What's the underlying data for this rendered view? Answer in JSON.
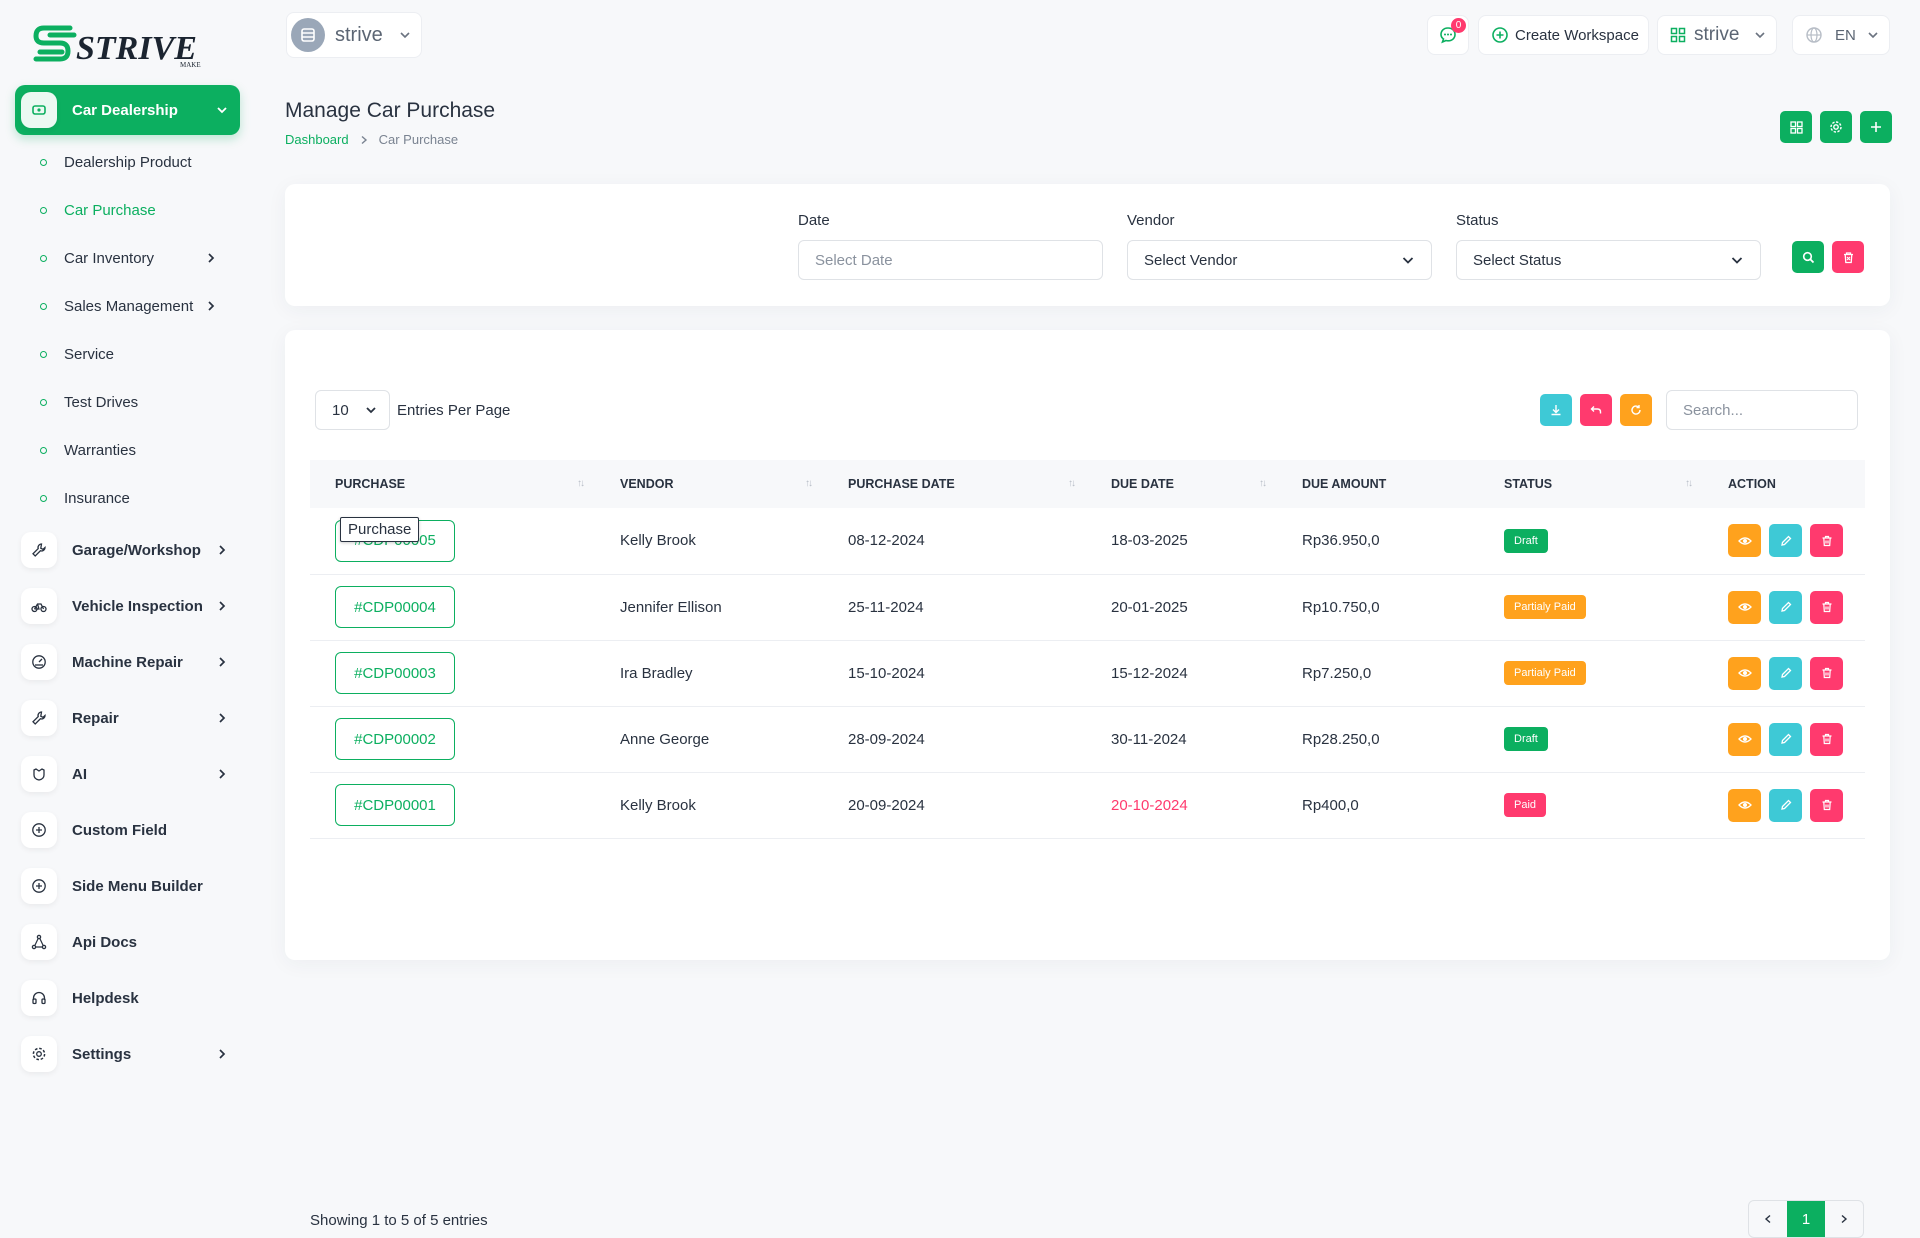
{
  "brand": {
    "logo_text": "STRIVE",
    "logo_sub": "MAKE"
  },
  "sidebar": {
    "top": {
      "label": "Car Dealership"
    },
    "sub_items": [
      {
        "label": "Dealership Product",
        "has_arrow": false
      },
      {
        "label": "Car Purchase",
        "has_arrow": false,
        "active": true
      },
      {
        "label": "Car Inventory",
        "has_arrow": true
      },
      {
        "label": "Sales Management",
        "has_arrow": true
      },
      {
        "label": "Service",
        "has_arrow": false
      },
      {
        "label": "Test Drives",
        "has_arrow": false
      },
      {
        "label": "Warranties",
        "has_arrow": false
      },
      {
        "label": "Insurance",
        "has_arrow": false
      }
    ],
    "main_items": [
      {
        "label": "Garage/Workshop",
        "icon": "wrench-icon",
        "has_arrow": true
      },
      {
        "label": "Vehicle Inspection",
        "icon": "bike-icon",
        "has_arrow": true
      },
      {
        "label": "Machine Repair",
        "icon": "gauge-icon",
        "has_arrow": true
      },
      {
        "label": "Repair",
        "icon": "wrench-icon",
        "has_arrow": true
      },
      {
        "label": "AI",
        "icon": "brain-icon",
        "has_arrow": true
      },
      {
        "label": "Custom Field",
        "icon": "plus-circle-icon",
        "has_arrow": false
      },
      {
        "label": "Side Menu Builder",
        "icon": "plus-circle-icon",
        "has_arrow": false
      },
      {
        "label": "Api Docs",
        "icon": "network-icon",
        "has_arrow": false
      },
      {
        "label": "Helpdesk",
        "icon": "headset-icon",
        "has_arrow": false
      },
      {
        "label": "Settings",
        "icon": "gear-icon",
        "has_arrow": true
      }
    ]
  },
  "header": {
    "workspace_name": "strive",
    "notification_count": "0",
    "create_workspace": "Create Workspace",
    "workspace_menu": "strive",
    "language": "EN"
  },
  "page": {
    "title": "Manage Car Purchase",
    "breadcrumb": [
      "Dashboard",
      "Car Purchase"
    ]
  },
  "filters": {
    "date": {
      "label": "Date",
      "placeholder": "Select Date"
    },
    "vendor": {
      "label": "Vendor",
      "value": "Select Vendor"
    },
    "status": {
      "label": "Status",
      "value": "Select Status"
    }
  },
  "table": {
    "per_page": "10",
    "per_page_label": "Entries Per Page",
    "search_placeholder": "Search...",
    "columns": [
      "PURCHASE",
      "VENDOR",
      "PURCHASE DATE",
      "DUE DATE",
      "DUE AMOUNT",
      "STATUS",
      "ACTION"
    ],
    "tooltip": "Purchase",
    "rows": [
      {
        "id": "#CDP00005",
        "vendor": "Kelly Brook",
        "purchase_date": "08-12-2024",
        "due_date": "18-03-2025",
        "due_amount": "Rp36.950,0",
        "status": "Draft",
        "status_color": "#0caf60",
        "overdue": false
      },
      {
        "id": "#CDP00004",
        "vendor": "Jennifer Ellison",
        "purchase_date": "25-11-2024",
        "due_date": "20-01-2025",
        "due_amount": "Rp10.750,0",
        "status": "Partialy Paid",
        "status_color": "#ffa21d",
        "overdue": false
      },
      {
        "id": "#CDP00003",
        "vendor": "Ira Bradley",
        "purchase_date": "15-10-2024",
        "due_date": "15-12-2024",
        "due_amount": "Rp7.250,0",
        "status": "Partialy Paid",
        "status_color": "#ffa21d",
        "overdue": false
      },
      {
        "id": "#CDP00002",
        "vendor": "Anne George",
        "purchase_date": "28-09-2024",
        "due_date": "30-11-2024",
        "due_amount": "Rp28.250,0",
        "status": "Draft",
        "status_color": "#0caf60",
        "overdue": false
      },
      {
        "id": "#CDP00001",
        "vendor": "Kelly Brook",
        "purchase_date": "20-09-2024",
        "due_date": "20-10-2024",
        "due_amount": "Rp400,0",
        "status": "Paid",
        "status_color": "#ff3a6e",
        "overdue": true
      }
    ],
    "showing": "Showing 1 to 5 of 5 entries",
    "current_page": "1"
  },
  "colors": {
    "primary": "#0caf60",
    "danger": "#ff3a6e",
    "info": "#3ec9d6",
    "warning": "#ffa21d"
  }
}
